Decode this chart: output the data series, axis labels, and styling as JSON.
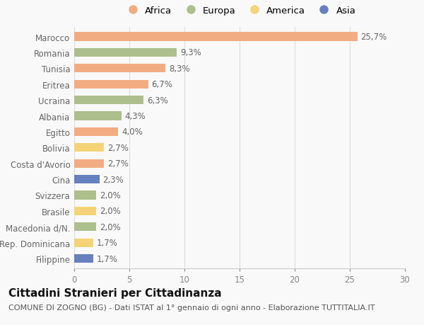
{
  "categories": [
    "Marocco",
    "Romania",
    "Tunisia",
    "Eritrea",
    "Ucraina",
    "Albania",
    "Egitto",
    "Bolivia",
    "Costa d'Avorio",
    "Cina",
    "Svizzera",
    "Brasile",
    "Macedonia d/N.",
    "Rep. Dominicana",
    "Filippine"
  ],
  "values": [
    25.7,
    9.3,
    8.3,
    6.7,
    6.3,
    4.3,
    4.0,
    2.7,
    2.7,
    2.3,
    2.0,
    2.0,
    2.0,
    1.7,
    1.7
  ],
  "labels": [
    "25,7%",
    "9,3%",
    "8,3%",
    "6,7%",
    "6,3%",
    "4,3%",
    "4,0%",
    "2,7%",
    "2,7%",
    "2,3%",
    "2,0%",
    "2,0%",
    "2,0%",
    "1,7%",
    "1,7%"
  ],
  "continents": [
    "Africa",
    "Europa",
    "Africa",
    "Africa",
    "Europa",
    "Europa",
    "Africa",
    "America",
    "Africa",
    "Asia",
    "Europa",
    "America",
    "Europa",
    "America",
    "Asia"
  ],
  "colors": {
    "Africa": "#F2AC82",
    "Europa": "#ADBF8C",
    "America": "#F5D478",
    "Asia": "#6680C0"
  },
  "legend_labels": [
    "Africa",
    "Europa",
    "America",
    "Asia"
  ],
  "title": "Cittadini Stranieri per Cittadinanza",
  "subtitle": "COMUNE DI ZOGNO (BG) - Dati ISTAT al 1° gennaio di ogni anno - Elaborazione TUTTITALIA.IT",
  "xlim": [
    0,
    30
  ],
  "xticks": [
    0,
    5,
    10,
    15,
    20,
    25,
    30
  ],
  "background_color": "#f9f9f9",
  "bar_height": 0.55,
  "title_fontsize": 11,
  "subtitle_fontsize": 8,
  "label_fontsize": 8.5,
  "tick_fontsize": 8.5,
  "legend_fontsize": 9.5
}
